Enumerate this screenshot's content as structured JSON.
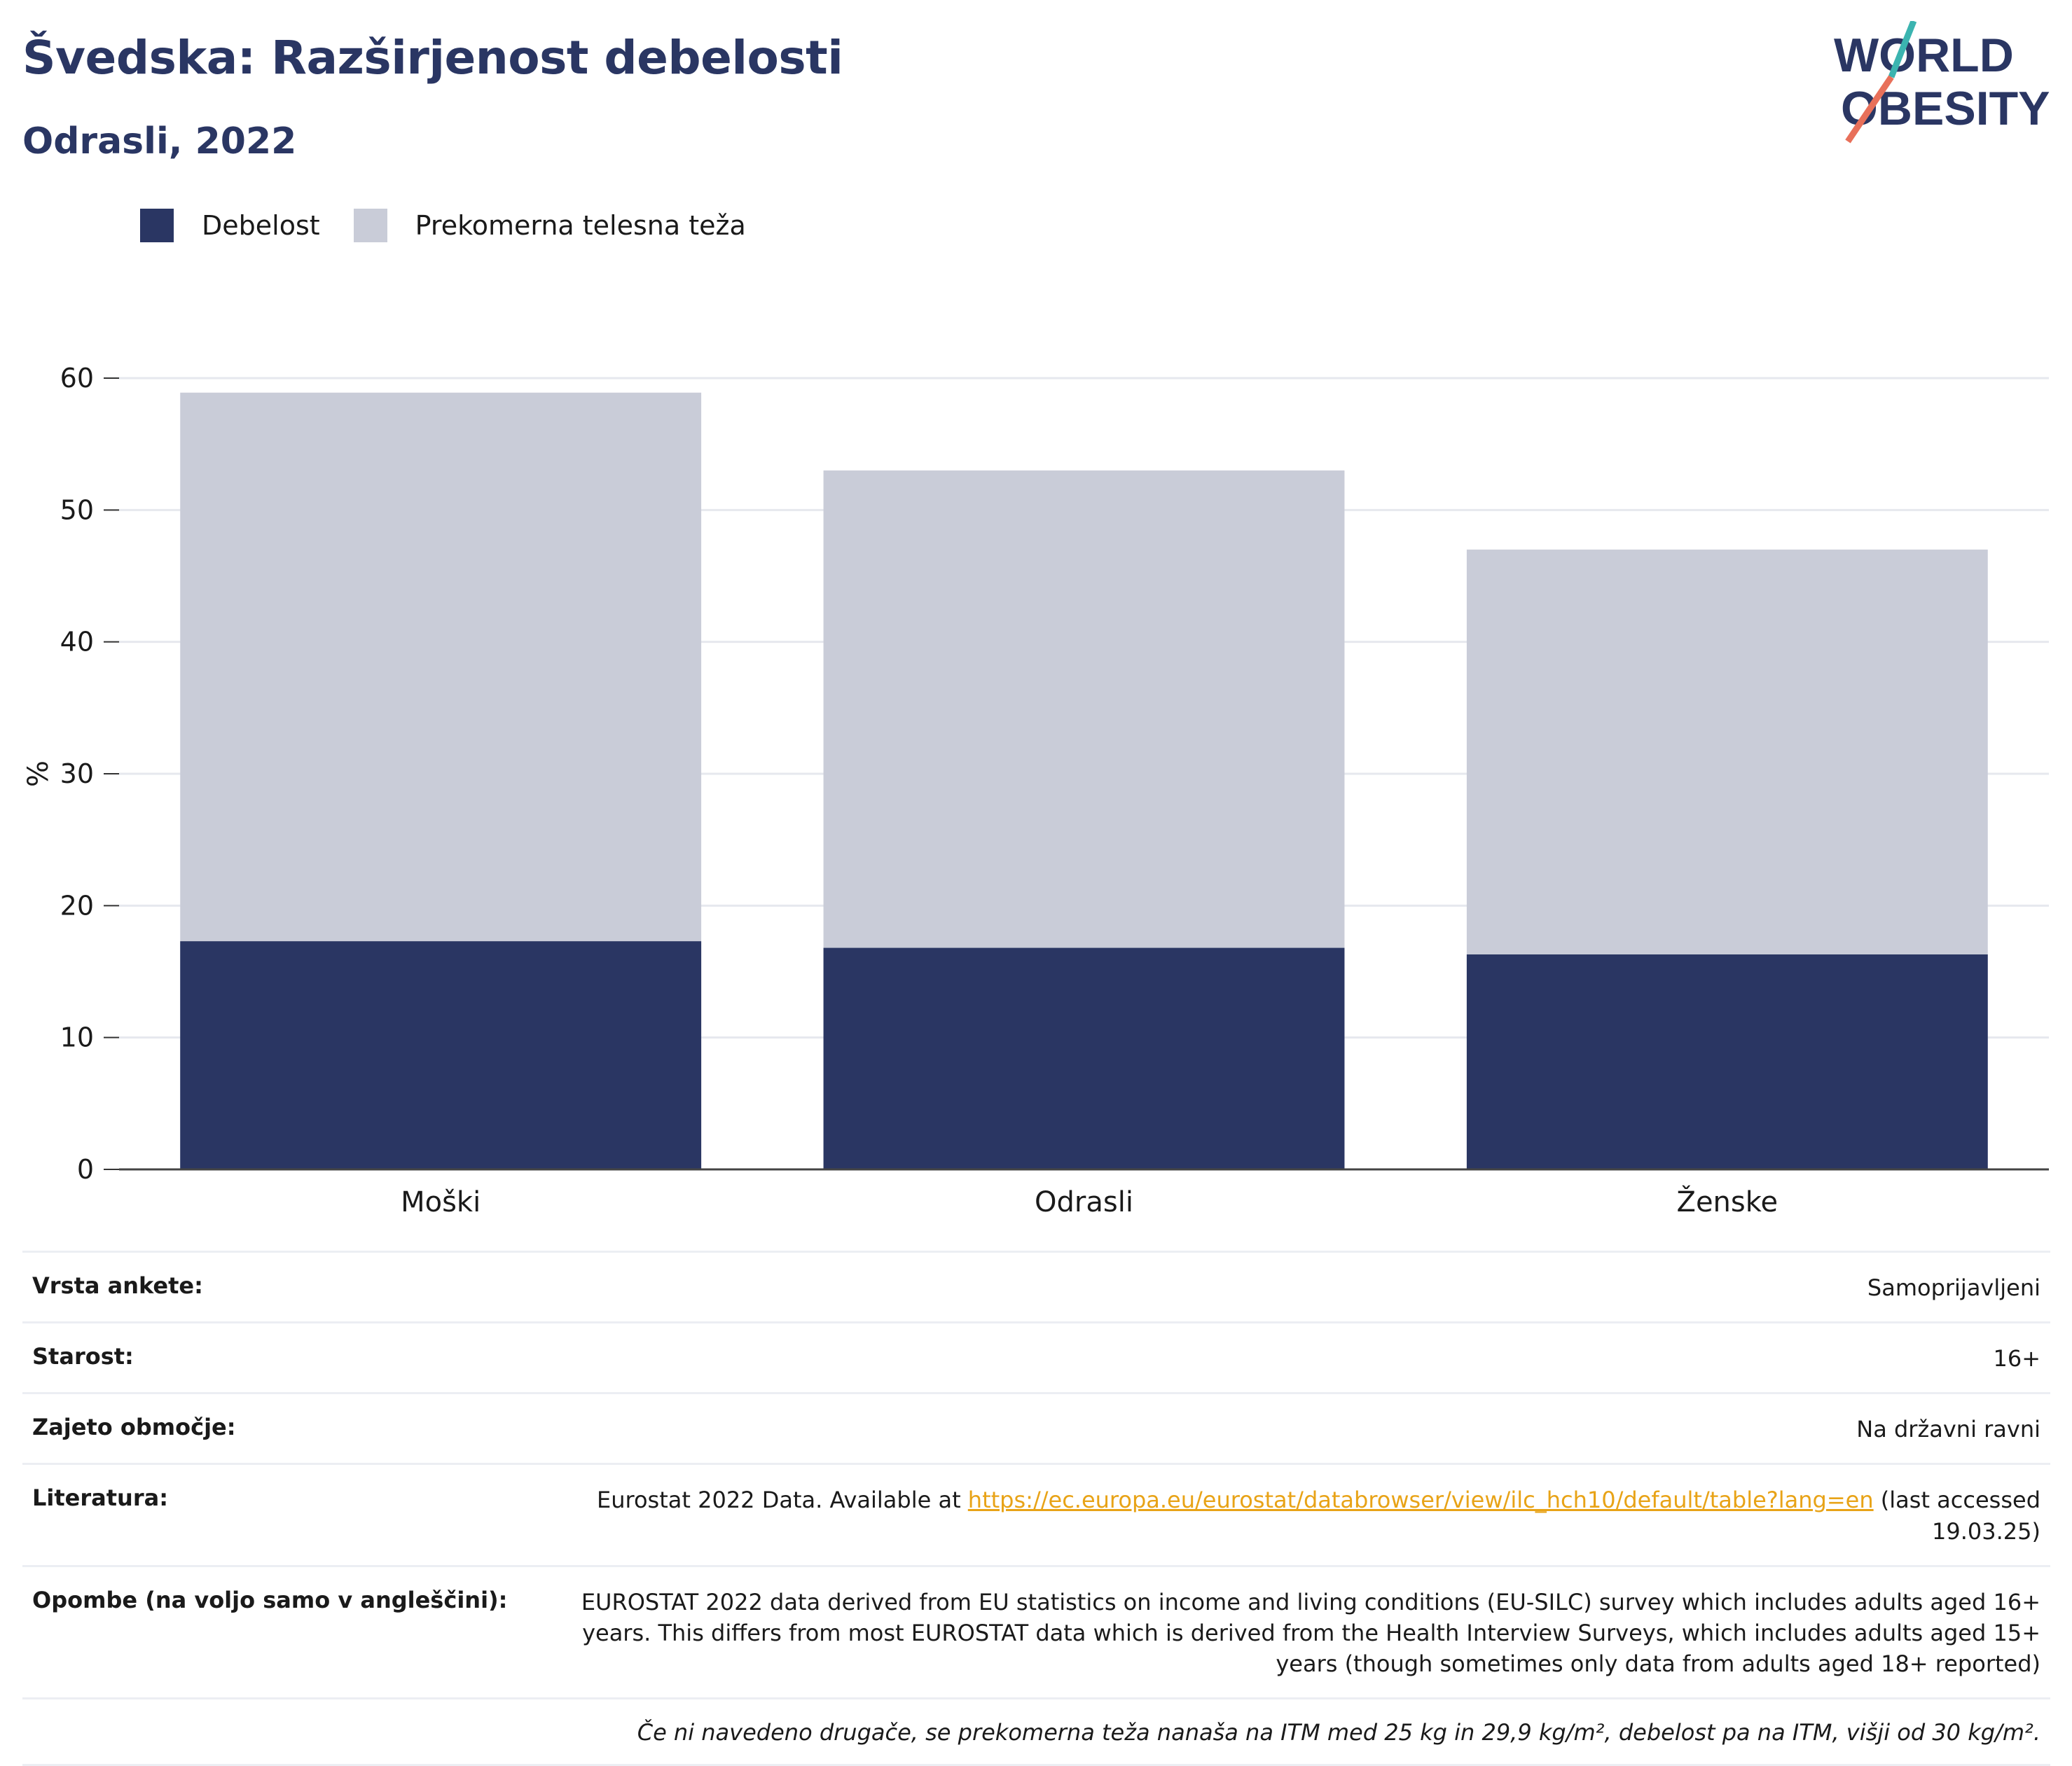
{
  "header": {
    "title": "Švedska: Razširjenost debelosti",
    "subtitle": "Odrasli, 2022",
    "logo_line1": "WORLD",
    "logo_line2": "OBESITY"
  },
  "legend": {
    "obesity": "Debelost",
    "overweight": "Prekomerna telesna teža"
  },
  "colors": {
    "obesity": "#2a3663",
    "overweight": "#c9ccd8",
    "accent_teal": "#3bb4b0",
    "accent_coral": "#e8705a",
    "link": "#e8a317"
  },
  "chart_data": {
    "type": "bar",
    "stacked": false,
    "overlap": true,
    "categories": [
      "Moški",
      "Odrasli",
      "Ženske"
    ],
    "series": [
      {
        "name": "Prekomerna telesna teža",
        "values": [
          58.9,
          53.0,
          47.0
        ]
      },
      {
        "name": "Debelost",
        "values": [
          17.3,
          16.8,
          16.3
        ]
      }
    ],
    "ylabel": "%",
    "ylim": [
      0,
      60
    ],
    "yticks": [
      "0",
      "10",
      "20",
      "30",
      "40",
      "50",
      "60"
    ],
    "grid": true
  },
  "info": {
    "survey_type": {
      "label": "Vrsta ankete:",
      "value": "Samoprijavljeni"
    },
    "age": {
      "label": "Starost:",
      "value": "16+"
    },
    "coverage": {
      "label": "Zajeto območje:",
      "value": "Na državni ravni"
    },
    "reference": {
      "label": "Literatura:",
      "text_before": "Eurostat 2022 Data. Available at ",
      "link": "https://ec.europa.eu/eurostat/databrowser/view/ilc_hch10/default/table?lang=en",
      "text_after": " (last accessed 19.03.25)"
    },
    "notes": {
      "label": "Opombe (na voljo samo v angleščini):",
      "value": "EUROSTAT 2022 data derived from EU statistics on income and living conditions (EU-SILC) survey which includes adults aged 16+ years. This differs from most EUROSTAT data which is derived from the Health Interview Surveys, which includes adults aged 15+ years (though sometimes only data from adults aged 18+ reported)"
    },
    "footnote": "Če ni navedeno drugače, se prekomerna teža nanaša na ITM med 25 kg in 29,9 kg/m², debelost pa na ITM, višji od 30 kg/m²."
  }
}
